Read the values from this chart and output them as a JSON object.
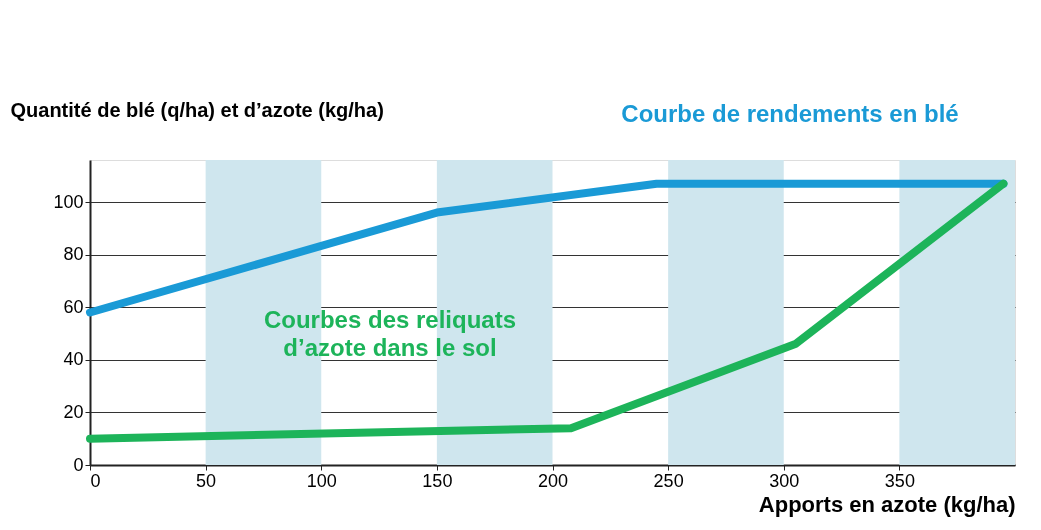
{
  "chart_data": {
    "type": "line",
    "xlabel": "Apports en azote (kg/ha)",
    "ylabel": "Quantité de blé (q/ha) et d’azote (kg/ha)",
    "xlim": [
      0,
      400
    ],
    "ylim": [
      0,
      116
    ],
    "xticks": [
      0,
      50,
      100,
      150,
      200,
      250,
      300,
      350
    ],
    "yticks": [
      0,
      20,
      40,
      60,
      80,
      100
    ],
    "grid": "y",
    "series": [
      {
        "color": "#1a9ad6",
        "x": [
          0,
          150,
          245,
          395
        ],
        "values": [
          58,
          96,
          107,
          107
        ]
      },
      {
        "color": "#1db45a",
        "x": [
          0,
          208,
          305,
          395
        ],
        "values": [
          10,
          14,
          46,
          107
        ]
      }
    ],
    "bands": [
      {
        "axis": "x",
        "from": 50,
        "to": 100,
        "color": "#cfe6ee"
      },
      {
        "axis": "x",
        "from": 150,
        "to": 200,
        "color": "#cfe6ee"
      },
      {
        "axis": "x",
        "from": 250,
        "to": 300,
        "color": "#cfe6ee"
      },
      {
        "axis": "x",
        "from": 350,
        "to": 400,
        "color": "#cfe6ee"
      }
    ],
    "annotations": [
      "Courbe de rendements en blé",
      "Courbes des reliquats\nd’azote dans le sol"
    ]
  }
}
